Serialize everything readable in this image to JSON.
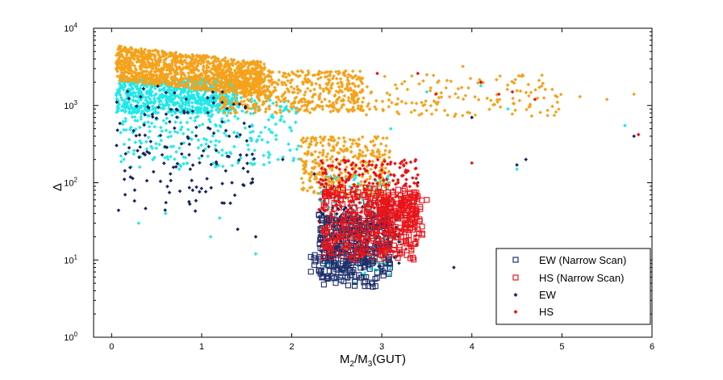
{
  "chart_data": {
    "type": "scatter",
    "title": "",
    "xlabel": {
      "main": "M",
      "sub1": "2",
      "mid": "/M",
      "sub2": "3",
      "tail": "(GUT)"
    },
    "ylabel": "Δ",
    "xlim": [
      -0.2,
      6
    ],
    "ylim_log10": [
      0,
      4
    ],
    "yscale": "log",
    "x_ticks": [
      "0",
      "1",
      "2",
      "3",
      "4",
      "5",
      "6"
    ],
    "y_ticks": [
      {
        "base": "10",
        "exp": "0"
      },
      {
        "base": "10",
        "exp": "1"
      },
      {
        "base": "10",
        "exp": "2"
      },
      {
        "base": "10",
        "exp": "3"
      },
      {
        "base": "10",
        "exp": "4"
      }
    ],
    "grid": false,
    "legend_position": "bottom-right",
    "colors": {
      "ew_narrow": "#1f2f6b",
      "hs_narrow": "#e8141a",
      "ew": "#16265e",
      "hs": "#e81414",
      "cyan": "#22e8e8",
      "orange": "#f5a21b"
    },
    "series": [
      {
        "name": "EW (Narrow Scan)",
        "marker": "square",
        "color": "#1f2f6b",
        "clusters": [
          {
            "x": [
              2.3,
              3.1
            ],
            "log_y": [
              0.75,
              1.6
            ],
            "n": 240
          },
          {
            "x": [
              2.2,
              2.95
            ],
            "log_y": [
              0.65,
              1.2
            ],
            "n": 70
          }
        ],
        "points": [
          [
            2.55,
            5.5
          ],
          [
            2.7,
            5.2
          ],
          [
            2.85,
            4.6
          ],
          [
            2.9,
            4.5
          ],
          [
            2.8,
            6.0
          ]
        ]
      },
      {
        "name": "HS (Narrow Scan)",
        "marker": "square",
        "color": "#e8141a",
        "clusters": [
          {
            "x": [
              2.35,
              3.4
            ],
            "log_y": [
              1.0,
              1.95
            ],
            "n": 320
          },
          {
            "x": [
              3.0,
              3.45
            ],
            "log_y": [
              1.2,
              1.85
            ],
            "n": 80
          }
        ],
        "points": [
          [
            3.3,
            18
          ],
          [
            3.4,
            25
          ],
          [
            3.5,
            60
          ],
          [
            3.45,
            22
          ],
          [
            3.2,
            12
          ]
        ]
      },
      {
        "name": "EW",
        "marker": "dot",
        "color": "#16265e",
        "clusters": [
          {
            "x": [
              0.05,
              1.6
            ],
            "log_y": [
              1.6,
              3.25
            ],
            "n": 150
          },
          {
            "x": [
              2.3,
              3.2
            ],
            "log_y": [
              0.8,
              1.7
            ],
            "n": 120
          }
        ],
        "points": [
          [
            0.15,
            70
          ],
          [
            1.4,
            25
          ],
          [
            1.6,
            20
          ],
          [
            3.8,
            8
          ],
          [
            4.6,
            200
          ],
          [
            5.8,
            400
          ],
          [
            4.1,
            2000
          ],
          [
            3.4,
            100
          ],
          [
            4.0,
            700
          ],
          [
            1.9,
            200
          ],
          [
            2.25,
            130
          ],
          [
            4.5,
            170
          ]
        ]
      },
      {
        "name": "HS",
        "marker": "dot",
        "color": "#e81414",
        "clusters": [
          {
            "x": [
              2.3,
              3.4
            ],
            "log_y": [
              1.1,
              2.3
            ],
            "n": 360
          }
        ],
        "points": [
          [
            2.95,
            2600
          ],
          [
            3.4,
            2600
          ],
          [
            4.1,
            2000
          ],
          [
            4.3,
            1400
          ],
          [
            4.7,
            1200
          ],
          [
            5.85,
            420
          ],
          [
            4.45,
            1500
          ],
          [
            4.0,
            180
          ],
          [
            3.6,
            1400
          ]
        ]
      },
      {
        "name": "Cyan",
        "marker": "dot",
        "color": "#22e8e8",
        "in_legend": false,
        "clusters": [
          {
            "x": [
              0.05,
              1.4
            ],
            "log_y": [
              2.9,
              3.35
            ],
            "n": 800
          },
          {
            "x": [
              0.1,
              2.1
            ],
            "log_y": [
              2.2,
              3.1
            ],
            "n": 300
          },
          {
            "x": [
              2.3,
              3.1
            ],
            "log_y": [
              0.8,
              2.1
            ],
            "n": 240
          }
        ],
        "points": [
          [
            0.3,
            30
          ],
          [
            0.6,
            40
          ],
          [
            1.1,
            20
          ],
          [
            1.2,
            35
          ],
          [
            1.6,
            12
          ],
          [
            0.75,
            150
          ],
          [
            3.1,
            500
          ],
          [
            3.5,
            1500
          ],
          [
            4.1,
            1800
          ],
          [
            5.7,
            550
          ],
          [
            4.5,
            150
          ],
          [
            4.4,
            900
          ],
          [
            2.5,
            6
          ],
          [
            2.7,
            5
          ]
        ]
      },
      {
        "name": "Orange",
        "marker": "dot",
        "color": "#f5a21b",
        "in_legend": false,
        "clusters": [
          {
            "x": [
              0.05,
              1.7
            ],
            "log_y": [
              3.25,
              3.75
            ],
            "n": 1200
          },
          {
            "x": [
              1.2,
              2.8
            ],
            "log_y": [
              2.9,
              3.45
            ],
            "n": 500
          },
          {
            "x": [
              2.1,
              3.1
            ],
            "log_y": [
              1.8,
              2.6
            ],
            "n": 350
          },
          {
            "x": [
              2.5,
              5.0
            ],
            "log_y": [
              2.85,
              3.4
            ],
            "n": 160
          }
        ],
        "points": [
          [
            5.2,
            1300
          ],
          [
            5.5,
            1200
          ],
          [
            5.8,
            1400
          ],
          [
            3.9,
            3200
          ],
          [
            3.5,
            2500
          ],
          [
            4.95,
            1100
          ],
          [
            2.6,
            2800
          ]
        ]
      }
    ],
    "legend": [
      "EW (Narrow Scan)",
      "HS (Narrow Scan)",
      "EW",
      "HS"
    ]
  }
}
